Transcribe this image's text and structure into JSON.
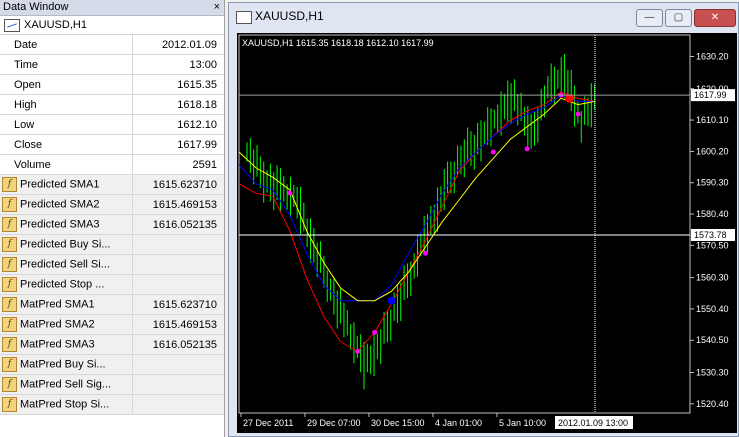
{
  "data_window": {
    "title": "Data Window",
    "close_icon": "×",
    "symbol": "XAUUSD,H1",
    "rows": [
      {
        "label": "Date",
        "value": "2012.01.09"
      },
      {
        "label": "Time",
        "value": "13:00"
      },
      {
        "label": "Open",
        "value": "1615.35"
      },
      {
        "label": "High",
        "value": "1618.18"
      },
      {
        "label": "Low",
        "value": "1612.10"
      },
      {
        "label": "Close",
        "value": "1617.99"
      },
      {
        "label": "Volume",
        "value": "2591"
      }
    ],
    "indicators": [
      {
        "label": "Predicted SMA1",
        "value": "1615.623710"
      },
      {
        "label": "Predicted SMA2",
        "value": "1615.469153"
      },
      {
        "label": "Predicted SMA3",
        "value": "1616.052135"
      },
      {
        "label": "Predicted Buy Si...",
        "value": ""
      },
      {
        "label": "Predicted Sell Si...",
        "value": ""
      },
      {
        "label": "Predicted Stop ...",
        "value": ""
      },
      {
        "label": "MatPred SMA1",
        "value": "1615.623710"
      },
      {
        "label": "MatPred SMA2",
        "value": "1615.469153"
      },
      {
        "label": "MatPred SMA3",
        "value": "1616.052135"
      },
      {
        "label": "MatPred Buy Si...",
        "value": ""
      },
      {
        "label": "MatPred Sell Sig...",
        "value": ""
      },
      {
        "label": "MatPred Stop Si...",
        "value": ""
      }
    ]
  },
  "chart_window": {
    "title": "XAUUSD,H1",
    "buttons": {
      "minimize": "—",
      "maximize": "▢",
      "close": "✕"
    },
    "ohlc_label": "XAUUSD,H1  1615.35 1618.18 1612.10 1617.99",
    "price_marker": "1617.99",
    "cursor_marker": "1573.78",
    "time_marker": "2012.01.09 13:00",
    "colors": {
      "candles": "#00ff00",
      "sma1": "#ff0000",
      "sma2": "#0000ff",
      "sma3": "#ffff00",
      "signal": "#ff00ff"
    }
  },
  "chart_data": {
    "type": "line",
    "title": "",
    "y_ticks": [
      "1630.20",
      "1620.00",
      "1610.10",
      "1600.20",
      "1590.30",
      "1580.40",
      "1570.50",
      "1560.30",
      "1550.40",
      "1540.50",
      "1530.30",
      "1520.40"
    ],
    "x_ticks": [
      "27 Dec 2011",
      "29 Dec 07:00",
      "30 Dec 15:00",
      "4 Jan 01:00",
      "5 Jan 10:00"
    ],
    "ylim": [
      1517.5,
      1637
    ],
    "series": [
      {
        "values": [
          1590,
          1587,
          1586,
          1575,
          1560,
          1548,
          1540,
          1537,
          1543,
          1552,
          1562,
          1572,
          1583,
          1594,
          1600,
          1605,
          1610,
          1613,
          1615,
          1619,
          1617,
          1616
        ]
      },
      {
        "values": [
          1596,
          1590,
          1588,
          1580,
          1568,
          1558,
          1553,
          1553,
          1553,
          1558,
          1568,
          1577,
          1587,
          1595,
          1600,
          1605,
          1609,
          1612,
          1614,
          1618,
          1616,
          1616
        ]
      },
      {
        "values": [
          1600,
          1595,
          1592,
          1588,
          1575,
          1565,
          1557,
          1553,
          1553,
          1556,
          1562,
          1570,
          1578,
          1585,
          1592,
          1598,
          1604,
          1608,
          1612,
          1617,
          1615,
          1616
        ]
      }
    ],
    "candle_closes": [
      1600,
      1592,
      1588,
      1585,
      1570,
      1557,
      1545,
      1533,
      1540,
      1552,
      1565,
      1578,
      1590,
      1600,
      1604,
      1612,
      1618,
      1605,
      1620,
      1625,
      1610,
      1618
    ]
  }
}
